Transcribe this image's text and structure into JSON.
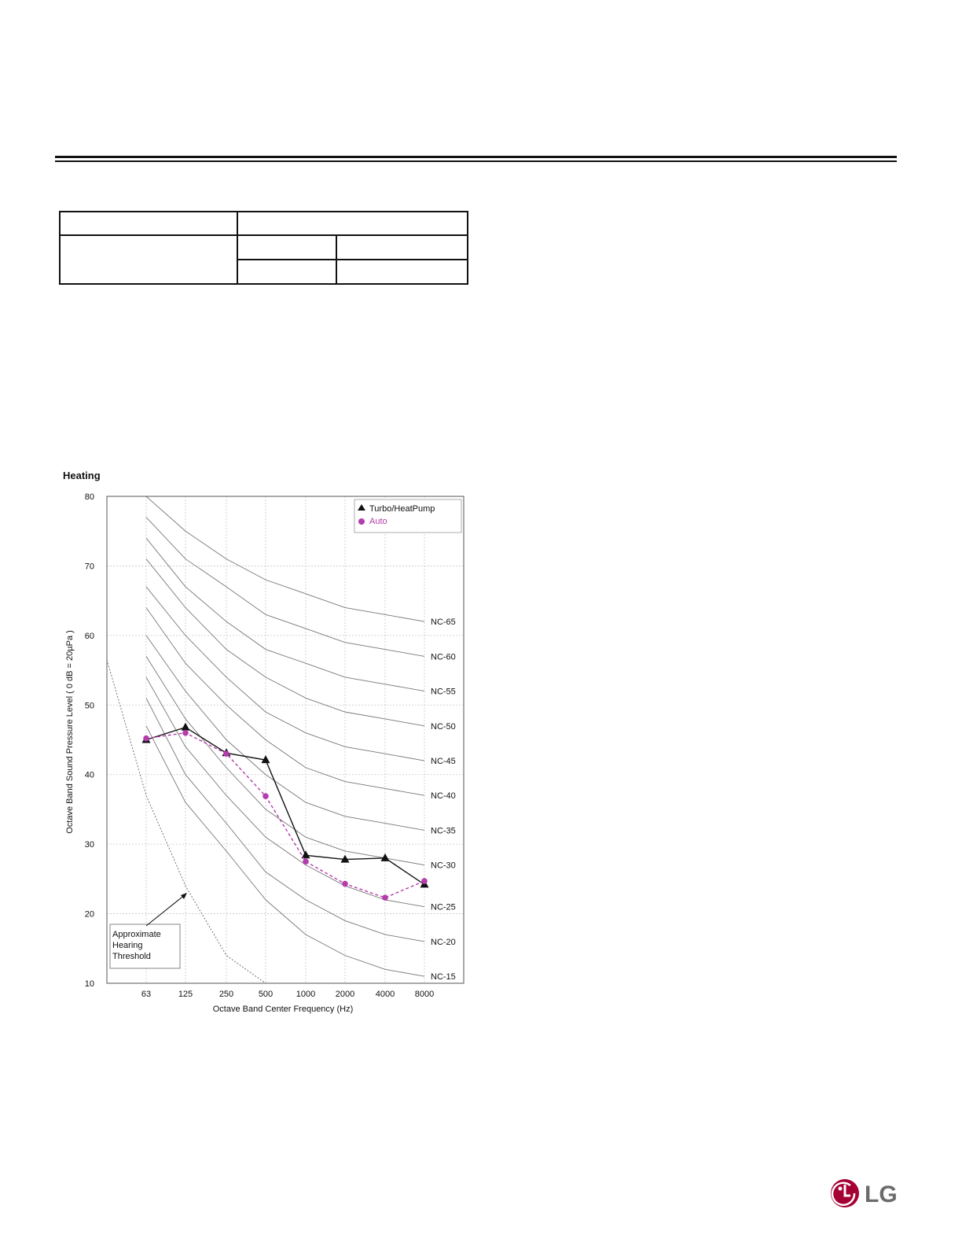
{
  "brand": "LG",
  "chart_data": {
    "type": "line",
    "title": "Heating",
    "xlabel": "Octave Band Center Frequency (Hz)",
    "ylabel": "Octave Band Sound Pressure Level ( 0 dB = 20µPa )",
    "categories": [
      "63",
      "125",
      "250",
      "500",
      "1000",
      "2000",
      "4000",
      "8000"
    ],
    "yticks": [
      10,
      20,
      30,
      40,
      50,
      60,
      70,
      80
    ],
    "ylim": [
      10,
      80
    ],
    "grid": true,
    "legend_position": "top-right",
    "series": [
      {
        "name": "Turbo/HeatPump",
        "marker": "triangle",
        "style": "solid",
        "color": "#111111",
        "values": [
          45.0,
          46.8,
          43.1,
          42.1,
          28.4,
          27.8,
          28.0,
          24.2
        ]
      },
      {
        "name": "Auto",
        "marker": "circle",
        "style": "dashed",
        "color": "#b43cab",
        "values": [
          45.2,
          46.0,
          43.0,
          36.9,
          27.5,
          24.3,
          22.3,
          24.7
        ]
      }
    ],
    "nc_curves": [
      {
        "label": "NC-65",
        "values": [
          80,
          75,
          71,
          68,
          66,
          64,
          63,
          62
        ]
      },
      {
        "label": "NC-60",
        "values": [
          77,
          71,
          67,
          63,
          61,
          59,
          58,
          57
        ]
      },
      {
        "label": "NC-55",
        "values": [
          74,
          67,
          62,
          58,
          56,
          54,
          53,
          52
        ]
      },
      {
        "label": "NC-50",
        "values": [
          71,
          64,
          58,
          54,
          51,
          49,
          48,
          47
        ]
      },
      {
        "label": "NC-45",
        "values": [
          67,
          60,
          54,
          49,
          46,
          44,
          43,
          42
        ]
      },
      {
        "label": "NC-40",
        "values": [
          64,
          56,
          50,
          45,
          41,
          39,
          38,
          37
        ]
      },
      {
        "label": "NC-35",
        "values": [
          60,
          52,
          45,
          40,
          36,
          34,
          33,
          32
        ]
      },
      {
        "label": "NC-30",
        "values": [
          57,
          48,
          41,
          35,
          31,
          29,
          28,
          27
        ]
      },
      {
        "label": "NC-25",
        "values": [
          54,
          44,
          37,
          31,
          27,
          24,
          22,
          21
        ]
      },
      {
        "label": "NC-20",
        "values": [
          51,
          40,
          33,
          26,
          22,
          19,
          17,
          16
        ]
      },
      {
        "label": "NC-15",
        "values": [
          47,
          36,
          29,
          22,
          17,
          14,
          12,
          11
        ]
      }
    ],
    "threshold_curve": {
      "values": [
        56.5,
        37,
        24,
        14,
        10
      ]
    },
    "annotation": {
      "lines": [
        "Approximate",
        "Hearing",
        "Threshold"
      ]
    }
  }
}
